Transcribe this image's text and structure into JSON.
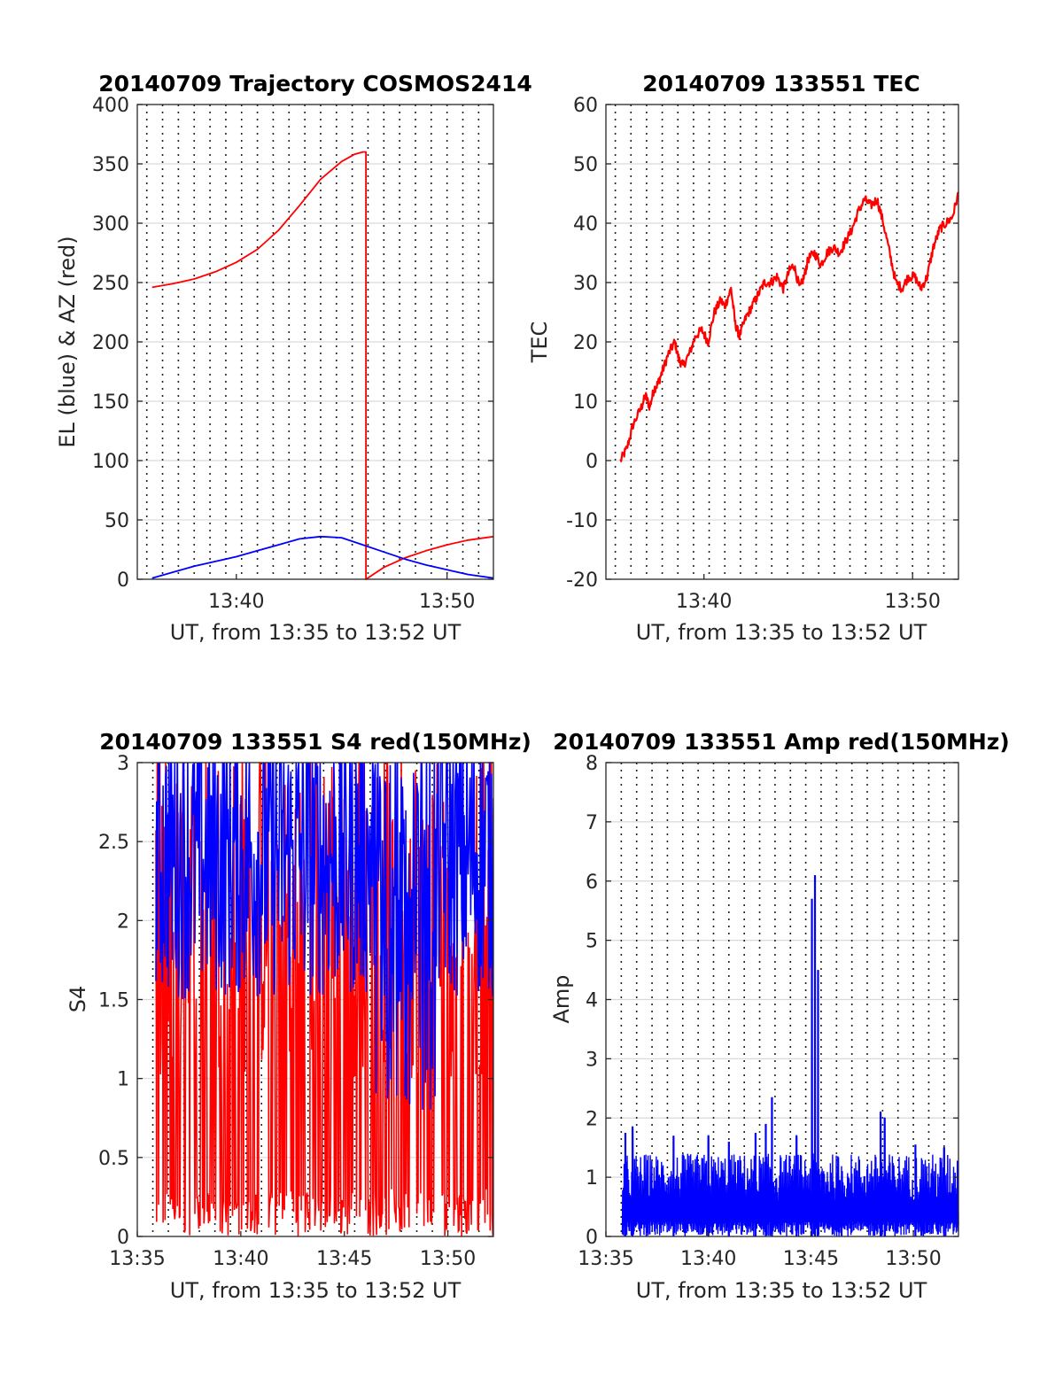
{
  "chart_data": [
    {
      "id": "trajectory",
      "type": "line",
      "title": "20140709 Trajectory COSMOS2414",
      "xlabel": "UT, from 13:35 to 13:52 UT",
      "ylabel": "EL (blue) & AZ (red)",
      "xlim": [
        35.3,
        52.2
      ],
      "ylim": [
        0,
        400
      ],
      "yticks": [
        0,
        50,
        100,
        150,
        200,
        250,
        300,
        350,
        400
      ],
      "xticks": [
        {
          "v": 40,
          "label": "13:40"
        },
        {
          "v": 50,
          "label": "13:50"
        }
      ],
      "grid": true,
      "series": [
        {
          "color": "#ff0000",
          "x": [
            36.0,
            37.0,
            38.0,
            39.0,
            40.0,
            41.0,
            42.0,
            43.0,
            44.0,
            45.0,
            45.6,
            46.0,
            46.15,
            46.15,
            47.0,
            48.0,
            49.0,
            50.0,
            51.0,
            52.2
          ],
          "y": [
            246,
            249,
            253,
            259,
            267,
            278,
            294,
            315,
            337,
            352,
            358,
            360,
            360,
            0,
            10,
            18,
            24,
            29,
            33,
            36
          ]
        },
        {
          "color": "#0000ff",
          "x": [
            36.0,
            37.0,
            38.0,
            39.0,
            40.0,
            41.0,
            42.0,
            43.0,
            44.0,
            45.0,
            46.0,
            47.0,
            48.0,
            49.0,
            50.0,
            51.0,
            52.2
          ],
          "y": [
            1,
            6,
            11,
            15,
            19,
            24,
            29,
            34,
            36,
            35,
            29,
            23,
            17,
            12,
            8,
            4,
            1
          ]
        }
      ]
    },
    {
      "id": "tec",
      "type": "line",
      "title": "20140709 133551 TEC",
      "xlabel": "UT, from 13:35 to 13:52 UT",
      "ylabel": "TEC",
      "xlim": [
        35.3,
        52.2
      ],
      "ylim": [
        -20,
        60
      ],
      "yticks": [
        -20,
        -10,
        0,
        10,
        20,
        30,
        40,
        50,
        60
      ],
      "xticks": [
        {
          "v": 40,
          "label": "13:40"
        },
        {
          "v": 50,
          "label": "13:50"
        }
      ],
      "grid": true,
      "series": [
        {
          "color": "#ff0000",
          "x": [
            36.0,
            36.3,
            36.6,
            37.0,
            37.2,
            37.4,
            37.6,
            37.8,
            38.0,
            38.3,
            38.6,
            38.8,
            39.0,
            39.3,
            39.6,
            39.9,
            40.2,
            40.5,
            40.8,
            41.0,
            41.3,
            41.5,
            41.7,
            42.0,
            42.3,
            42.6,
            42.9,
            43.2,
            43.5,
            43.8,
            44.1,
            44.3,
            44.6,
            44.8,
            45.0,
            45.3,
            45.6,
            45.9,
            46.2,
            46.5,
            46.8,
            47.1,
            47.4,
            47.7,
            48.0,
            48.3,
            48.6,
            48.9,
            49.2,
            49.5,
            49.8,
            50.1,
            50.4,
            50.7,
            51.0,
            51.3,
            51.6,
            51.9,
            52.2
          ],
          "y": [
            0,
            2,
            6,
            9,
            11,
            9,
            12,
            13,
            15,
            18,
            20,
            17,
            16,
            18,
            21,
            22,
            20,
            25,
            27,
            26,
            29,
            23,
            21,
            24,
            26,
            28,
            30,
            30,
            31,
            29,
            32,
            33,
            29,
            31,
            34,
            35,
            33,
            35,
            36,
            35,
            37,
            39,
            42,
            44,
            43,
            44,
            40,
            35,
            30,
            29,
            31,
            31,
            29,
            31,
            36,
            39,
            40,
            41,
            45
          ]
        }
      ]
    },
    {
      "id": "s4",
      "type": "line",
      "title": "20140709 133551 S4 red(150MHz)",
      "xlabel": "UT, from 13:35 to 13:52 UT",
      "ylabel": "S4",
      "xlim": [
        35.0,
        52.2
      ],
      "ylim": [
        0,
        3
      ],
      "yticks": [
        0,
        0.5,
        1,
        1.5,
        2,
        2.5,
        3
      ],
      "xticks": [
        {
          "v": 35,
          "label": "13:35"
        },
        {
          "v": 40,
          "label": "13:40"
        },
        {
          "v": 45,
          "label": "13:45"
        },
        {
          "v": 50,
          "label": "13:50"
        }
      ],
      "grid": true,
      "series": [
        {
          "color": "#ff0000",
          "x_start": 35.9,
          "x_end": 52.2,
          "range": [
            0,
            3
          ]
        },
        {
          "color": "#0000ff",
          "x_start": 35.9,
          "x_end": 52.2,
          "range": [
            1.1,
            3
          ]
        }
      ]
    },
    {
      "id": "amp",
      "type": "line",
      "title": "20140709 133551 Amp red(150MHz)",
      "xlabel": "UT, from 13:35 to 13:52 UT",
      "ylabel": "Amp",
      "xlim": [
        35.0,
        52.2
      ],
      "ylim": [
        0,
        8
      ],
      "yticks": [
        0,
        1,
        2,
        3,
        4,
        5,
        6,
        7,
        8
      ],
      "xticks": [
        {
          "v": 35,
          "label": "13:35"
        },
        {
          "v": 40,
          "label": "13:40"
        },
        {
          "v": 45,
          "label": "13:45"
        },
        {
          "v": 50,
          "label": "13:50"
        }
      ],
      "grid": true,
      "series": [
        {
          "color": "#0000ff",
          "x_start": 35.8,
          "x_end": 52.2,
          "typical_max": 1.4,
          "peaks": [
            {
              "x": 35.95,
              "y": 1.75
            },
            {
              "x": 36.3,
              "y": 1.85
            },
            {
              "x": 38.3,
              "y": 1.7
            },
            {
              "x": 40.0,
              "y": 1.7
            },
            {
              "x": 41.0,
              "y": 1.6
            },
            {
              "x": 42.3,
              "y": 1.75
            },
            {
              "x": 42.8,
              "y": 1.9
            },
            {
              "x": 43.1,
              "y": 2.35
            },
            {
              "x": 44.3,
              "y": 1.7
            },
            {
              "x": 45.05,
              "y": 5.7
            },
            {
              "x": 45.2,
              "y": 6.1
            },
            {
              "x": 45.35,
              "y": 4.5
            },
            {
              "x": 48.4,
              "y": 2.1
            },
            {
              "x": 48.6,
              "y": 2.0
            },
            {
              "x": 50.1,
              "y": 1.55
            },
            {
              "x": 51.5,
              "y": 1.5
            }
          ]
        }
      ]
    }
  ]
}
